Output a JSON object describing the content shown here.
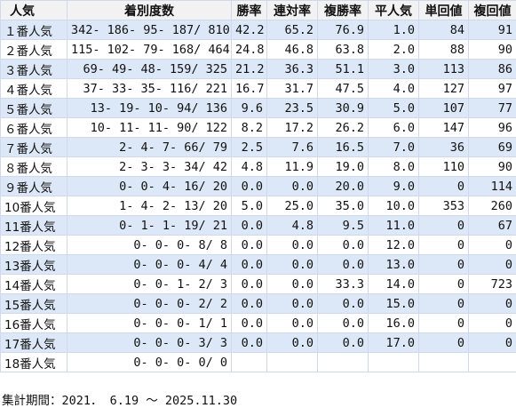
{
  "headers": [
    "人気",
    "着別度数",
    "勝率",
    "連対率",
    "複勝率",
    "平人気",
    "単回値",
    "複回値"
  ],
  "rows": [
    {
      "rank": "１番人気",
      "counts": "342- 186- 95- 187/ 810",
      "win": "42.2",
      "quinella": "65.2",
      "show": "76.9",
      "avg_pop": "1.0",
      "win_return": "84",
      "show_return": "91"
    },
    {
      "rank": "２番人気",
      "counts": "115- 102- 79- 168/ 464",
      "win": "24.8",
      "quinella": "46.8",
      "show": "63.8",
      "avg_pop": "2.0",
      "win_return": "88",
      "show_return": "90"
    },
    {
      "rank": "３番人気",
      "counts": "69- 49- 48- 159/ 325",
      "win": "21.2",
      "quinella": "36.3",
      "show": "51.1",
      "avg_pop": "3.0",
      "win_return": "113",
      "show_return": "86"
    },
    {
      "rank": "４番人気",
      "counts": "37- 33- 35- 116/ 221",
      "win": "16.7",
      "quinella": "31.7",
      "show": "47.5",
      "avg_pop": "4.0",
      "win_return": "127",
      "show_return": "97"
    },
    {
      "rank": "５番人気",
      "counts": "13- 19- 10- 94/ 136",
      "win": "9.6",
      "quinella": "23.5",
      "show": "30.9",
      "avg_pop": "5.0",
      "win_return": "107",
      "show_return": "77"
    },
    {
      "rank": "６番人気",
      "counts": "10- 11- 11- 90/ 122",
      "win": "8.2",
      "quinella": "17.2",
      "show": "26.2",
      "avg_pop": "6.0",
      "win_return": "147",
      "show_return": "96"
    },
    {
      "rank": "７番人気",
      "counts": "2- 4- 7- 66/ 79",
      "win": "2.5",
      "quinella": "7.6",
      "show": "16.5",
      "avg_pop": "7.0",
      "win_return": "36",
      "show_return": "69"
    },
    {
      "rank": "８番人気",
      "counts": "2- 3- 3- 34/ 42",
      "win": "4.8",
      "quinella": "11.9",
      "show": "19.0",
      "avg_pop": "8.0",
      "win_return": "110",
      "show_return": "90"
    },
    {
      "rank": "９番人気",
      "counts": "0- 0- 4- 16/ 20",
      "win": "0.0",
      "quinella": "0.0",
      "show": "20.0",
      "avg_pop": "9.0",
      "win_return": "0",
      "show_return": "114"
    },
    {
      "rank": "10番人気",
      "counts": "1- 4- 2- 13/ 20",
      "win": "5.0",
      "quinella": "25.0",
      "show": "35.0",
      "avg_pop": "10.0",
      "win_return": "353",
      "show_return": "260"
    },
    {
      "rank": "11番人気",
      "counts": "0- 1- 1- 19/ 21",
      "win": "0.0",
      "quinella": "4.8",
      "show": "9.5",
      "avg_pop": "11.0",
      "win_return": "0",
      "show_return": "67"
    },
    {
      "rank": "12番人気",
      "counts": "0- 0- 0- 8/ 8",
      "win": "0.0",
      "quinella": "0.0",
      "show": "0.0",
      "avg_pop": "12.0",
      "win_return": "0",
      "show_return": "0"
    },
    {
      "rank": "13番人気",
      "counts": "0- 0- 0- 4/ 4",
      "win": "0.0",
      "quinella": "0.0",
      "show": "0.0",
      "avg_pop": "13.0",
      "win_return": "0",
      "show_return": "0"
    },
    {
      "rank": "14番人気",
      "counts": "0- 0- 1- 2/ 3",
      "win": "0.0",
      "quinella": "0.0",
      "show": "33.3",
      "avg_pop": "14.0",
      "win_return": "0",
      "show_return": "723"
    },
    {
      "rank": "15番人気",
      "counts": "0- 0- 0- 2/ 2",
      "win": "0.0",
      "quinella": "0.0",
      "show": "0.0",
      "avg_pop": "15.0",
      "win_return": "0",
      "show_return": "0"
    },
    {
      "rank": "16番人気",
      "counts": "0- 0- 0- 1/ 1",
      "win": "0.0",
      "quinella": "0.0",
      "show": "0.0",
      "avg_pop": "16.0",
      "win_return": "0",
      "show_return": "0"
    },
    {
      "rank": "17番人気",
      "counts": "0- 0- 0- 3/ 3",
      "win": "0.0",
      "quinella": "0.0",
      "show": "0.0",
      "avg_pop": "17.0",
      "win_return": "0",
      "show_return": "0"
    },
    {
      "rank": "18番人気",
      "counts": "0- 0- 0- 0/ 0",
      "win": "",
      "quinella": "",
      "show": "",
      "avg_pop": "",
      "win_return": "",
      "show_return": ""
    }
  ],
  "footer": {
    "period": "集計期間：2021． 6.19 ～ 2025.11.30"
  }
}
